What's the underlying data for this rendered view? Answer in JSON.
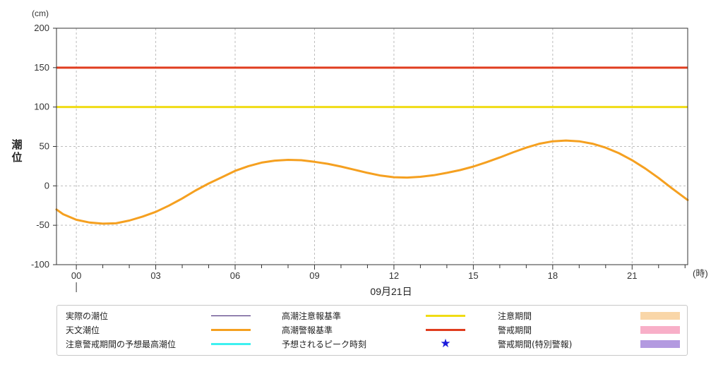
{
  "chart_data": {
    "type": "line",
    "title": "",
    "ylabel": "潮位",
    "y_unit": "(cm)",
    "x_unit": "(時)",
    "date_label": "09月21日",
    "ylim": [
      -100,
      200
    ],
    "y_ticks": [
      -100,
      -50,
      0,
      50,
      100,
      150,
      200
    ],
    "xlim_hours": [
      -0.75,
      23.1
    ],
    "x_tick_labels": [
      {
        "hour": 0,
        "label": "00"
      },
      {
        "hour": 3,
        "label": "03"
      },
      {
        "hour": 6,
        "label": "06"
      },
      {
        "hour": 9,
        "label": "09"
      },
      {
        "hour": 12,
        "label": "12"
      },
      {
        "hour": 15,
        "label": "15"
      },
      {
        "hour": 18,
        "label": "18"
      },
      {
        "hour": 21,
        "label": "21"
      }
    ],
    "grid": true,
    "series": [
      {
        "name": "天文潮位",
        "color": "#f5a020",
        "points": [
          [
            -0.75,
            -30
          ],
          [
            -0.5,
            -36
          ],
          [
            0,
            -43
          ],
          [
            0.5,
            -46.5
          ],
          [
            1,
            -48
          ],
          [
            1.5,
            -47.5
          ],
          [
            2,
            -44
          ],
          [
            2.5,
            -39
          ],
          [
            3,
            -33
          ],
          [
            3.5,
            -25
          ],
          [
            4,
            -16
          ],
          [
            4.5,
            -6
          ],
          [
            5,
            3
          ],
          [
            5.5,
            11
          ],
          [
            6,
            19
          ],
          [
            6.5,
            25
          ],
          [
            7,
            29.5
          ],
          [
            7.5,
            32
          ],
          [
            8,
            33
          ],
          [
            8.5,
            32.5
          ],
          [
            9,
            30.5
          ],
          [
            9.5,
            28
          ],
          [
            10,
            24.5
          ],
          [
            10.5,
            20.5
          ],
          [
            11,
            16.5
          ],
          [
            11.5,
            13
          ],
          [
            12,
            11
          ],
          [
            12.5,
            10.5
          ],
          [
            13,
            11.5
          ],
          [
            13.5,
            13.5
          ],
          [
            14,
            16.5
          ],
          [
            14.5,
            20
          ],
          [
            15,
            24.5
          ],
          [
            15.5,
            30
          ],
          [
            16,
            36
          ],
          [
            16.5,
            42.5
          ],
          [
            17,
            48.5
          ],
          [
            17.5,
            53.5
          ],
          [
            18,
            56.5
          ],
          [
            18.5,
            57.5
          ],
          [
            19,
            56.5
          ],
          [
            19.5,
            53.5
          ],
          [
            20,
            48.5
          ],
          [
            20.5,
            41.5
          ],
          [
            21,
            32.5
          ],
          [
            21.5,
            22
          ],
          [
            22,
            10
          ],
          [
            22.5,
            -3
          ],
          [
            23.1,
            -18
          ]
        ]
      }
    ],
    "thresholds": [
      {
        "name": "高潮注意報基準",
        "value": 100,
        "color": "#f0dc14"
      },
      {
        "name": "高潮警報基準",
        "value": 150,
        "color": "#e03c1e"
      }
    ]
  },
  "legend": {
    "items": [
      {
        "label": "実際の潮位",
        "kind": "line",
        "color": "#3a1a6e",
        "thick": 1
      },
      {
        "label": "高潮注意報基準",
        "kind": "line",
        "color": "#f0dc14",
        "thick": 3
      },
      {
        "label": "注意期間",
        "kind": "box",
        "color": "#f9d6a8"
      },
      {
        "label": "天文潮位",
        "kind": "line",
        "color": "#f5a020",
        "thick": 3
      },
      {
        "label": "高潮警報基準",
        "kind": "line",
        "color": "#e03c1e",
        "thick": 3
      },
      {
        "label": "警戒期間",
        "kind": "box",
        "color": "#f8afc8"
      },
      {
        "label": "注意警戒期間の予想最高潮位",
        "kind": "line",
        "color": "#3ef0f0",
        "thick": 3
      },
      {
        "label": "予想されるピーク時刻",
        "kind": "star",
        "color": "#1a1adb"
      },
      {
        "label": "警戒期間(特別警報)",
        "kind": "box",
        "color": "#b39ae0"
      }
    ]
  }
}
